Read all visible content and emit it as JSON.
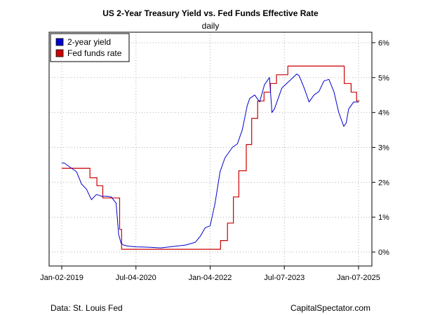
{
  "chart_data": {
    "type": "line",
    "title": "US 2-Year Treasury Yield vs. Fed Funds Effective Rate",
    "subtitle": "daily",
    "x_tick_labels": [
      "Jan-02-2019",
      "Jul-04-2020",
      "Jan-04-2022",
      "Jul-07-2023",
      "Jan-07-2025"
    ],
    "x_range": [
      "2019-01-02",
      "2025-01-07"
    ],
    "y_tick_labels": [
      "0%",
      "1%",
      "2%",
      "3%",
      "4%",
      "5%",
      "6%"
    ],
    "y_ticks": [
      0,
      1,
      2,
      3,
      4,
      5,
      6
    ],
    "ylim": [
      -0.4,
      6.3
    ],
    "grid": true,
    "legend_position": "top-left",
    "series": [
      {
        "name": "2-year yield",
        "color": "#0000cc",
        "x": [
          2019.0,
          2019.05,
          2019.1,
          2019.2,
          2019.3,
          2019.4,
          2019.5,
          2019.6,
          2019.7,
          2019.8,
          2019.9,
          2020.0,
          2020.1,
          2020.15,
          2020.2,
          2020.25,
          2020.35,
          2020.5,
          2020.75,
          2021.0,
          2021.25,
          2021.5,
          2021.7,
          2021.8,
          2021.9,
          2022.0,
          2022.1,
          2022.2,
          2022.3,
          2022.45,
          2022.55,
          2022.65,
          2022.75,
          2022.8,
          2022.9,
          2023.0,
          2023.1,
          2023.2,
          2023.25,
          2023.3,
          2023.45,
          2023.6,
          2023.75,
          2023.8,
          2023.9,
          2024.0,
          2024.1,
          2024.2,
          2024.3,
          2024.4,
          2024.5,
          2024.6,
          2024.7,
          2024.75,
          2024.8,
          2024.9,
          2025.0
        ],
        "values": [
          2.55,
          2.55,
          2.5,
          2.4,
          2.3,
          1.95,
          1.8,
          1.5,
          1.65,
          1.6,
          1.6,
          1.58,
          1.4,
          0.5,
          0.25,
          0.2,
          0.17,
          0.15,
          0.14,
          0.12,
          0.16,
          0.2,
          0.28,
          0.45,
          0.7,
          0.75,
          1.4,
          2.3,
          2.7,
          3.0,
          3.1,
          3.5,
          4.2,
          4.4,
          4.5,
          4.3,
          4.8,
          5.0,
          4.0,
          4.1,
          4.7,
          4.9,
          5.1,
          5.05,
          4.7,
          4.3,
          4.5,
          4.6,
          4.9,
          4.95,
          4.6,
          4.0,
          3.6,
          3.7,
          4.1,
          4.3,
          4.3
        ]
      },
      {
        "name": "Fed funds rate",
        "color": "#cc0000",
        "x": [
          2019.0,
          2019.57,
          2019.57,
          2019.71,
          2019.71,
          2019.83,
          2019.83,
          2020.17,
          2020.17,
          2020.21,
          2020.21,
          2022.21,
          2022.21,
          2022.35,
          2022.35,
          2022.47,
          2022.47,
          2022.58,
          2022.58,
          2022.73,
          2022.73,
          2022.84,
          2022.84,
          2022.96,
          2022.96,
          2023.09,
          2023.09,
          2023.22,
          2023.22,
          2023.34,
          2023.34,
          2023.57,
          2023.57,
          2024.71,
          2024.71,
          2024.85,
          2024.85,
          2024.96,
          2024.96,
          2025.02
        ],
        "values": [
          2.4,
          2.4,
          2.13,
          2.13,
          1.9,
          1.9,
          1.55,
          1.55,
          0.65,
          0.65,
          0.08,
          0.08,
          0.33,
          0.33,
          0.83,
          0.83,
          1.58,
          1.58,
          2.33,
          2.33,
          3.08,
          3.08,
          3.83,
          3.83,
          4.33,
          4.33,
          4.58,
          4.58,
          4.83,
          4.83,
          5.08,
          5.08,
          5.33,
          5.33,
          4.83,
          4.83,
          4.58,
          4.58,
          4.33,
          4.33
        ]
      }
    ],
    "footer_left": "Data: St. Louis Fed",
    "footer_right": "CapitalSpectator.com"
  }
}
